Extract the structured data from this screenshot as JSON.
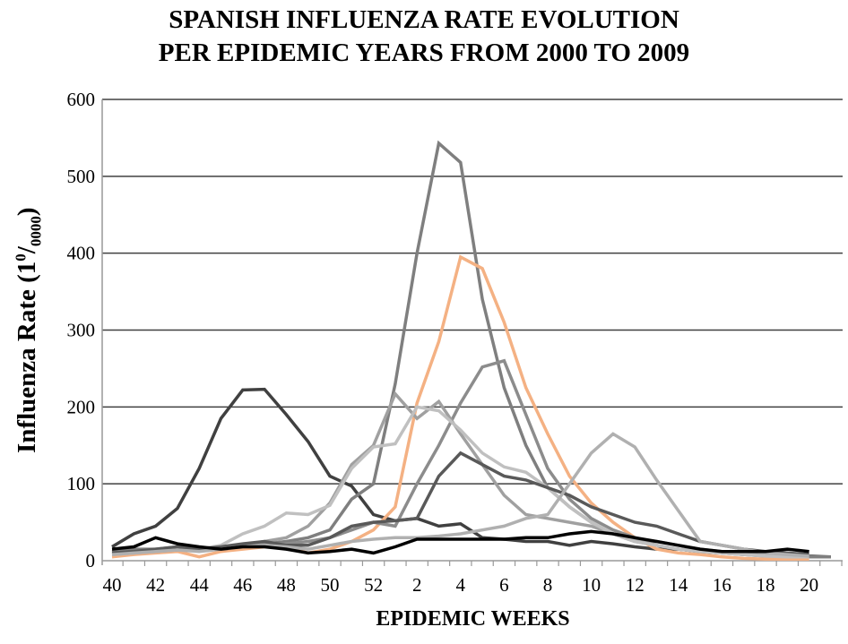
{
  "chart_data": {
    "type": "line",
    "title": [
      "SPANISH INFLUENZA RATE EVOLUTION",
      "PER EPIDEMIC YEARS FROM 2000 TO 2009"
    ],
    "xlabel": "EPIDEMIC WEEKS",
    "ylabel": {
      "main": "Influenza Rate  (1",
      "sup": "0",
      "slash": "/",
      "sub": "0000",
      "close": ")"
    },
    "ylim": [
      0,
      600
    ],
    "yticks": [
      0,
      100,
      200,
      300,
      400,
      500,
      600
    ],
    "grid": true,
    "legend": "none",
    "categories": [
      40,
      41,
      42,
      43,
      44,
      45,
      46,
      47,
      48,
      49,
      50,
      51,
      52,
      1,
      2,
      3,
      4,
      5,
      6,
      7,
      8,
      9,
      10,
      11,
      12,
      13,
      14,
      15,
      16,
      17,
      18,
      19,
      20,
      21
    ],
    "xtick_labels": [
      "40",
      "42",
      "44",
      "46",
      "48",
      "50",
      "52",
      "2",
      "4",
      "6",
      "8",
      "10",
      "12",
      "14",
      "16",
      "18",
      "20"
    ],
    "series": [
      {
        "color": "#404040",
        "values": [
          18,
          35,
          45,
          68,
          120,
          185,
          222,
          223,
          190,
          155,
          110,
          97,
          60,
          52,
          55,
          45,
          48,
          30,
          28,
          25,
          25,
          20,
          25,
          22,
          18,
          15,
          15,
          12,
          10,
          10,
          10,
          8,
          6,
          5
        ]
      },
      {
        "color": "#7f7f7f",
        "values": [
          12,
          15,
          15,
          18,
          15,
          18,
          20,
          22,
          25,
          30,
          40,
          80,
          100,
          230,
          400,
          543,
          518,
          340,
          225,
          150,
          95,
          70,
          50,
          35,
          25,
          20,
          15,
          12,
          10,
          8,
          6,
          5,
          5,
          5
        ]
      },
      {
        "color": "#f4b183",
        "values": [
          5,
          8,
          10,
          12,
          5,
          12,
          15,
          18,
          18,
          10,
          15,
          25,
          40,
          70,
          205,
          285,
          395,
          380,
          310,
          225,
          165,
          110,
          75,
          50,
          30,
          15,
          10,
          8,
          5,
          3,
          2,
          2,
          2,
          null
        ]
      },
      {
        "color": "#8c8c8c",
        "values": [
          10,
          12,
          12,
          15,
          15,
          18,
          20,
          20,
          22,
          25,
          30,
          40,
          50,
          45,
          100,
          150,
          205,
          252,
          260,
          190,
          120,
          80,
          55,
          40,
          30,
          20,
          15,
          12,
          10,
          8,
          8,
          6,
          5,
          null
        ]
      },
      {
        "color": "#a0a0a0",
        "values": [
          8,
          10,
          12,
          14,
          14,
          16,
          20,
          25,
          30,
          45,
          75,
          125,
          150,
          217,
          185,
          207,
          165,
          125,
          85,
          60,
          55,
          50,
          45,
          35,
          28,
          25,
          20,
          15,
          12,
          10,
          8,
          6,
          5,
          null
        ]
      },
      {
        "color": "#c0c0c0",
        "values": [
          8,
          10,
          12,
          15,
          15,
          20,
          35,
          45,
          62,
          60,
          72,
          120,
          148,
          152,
          200,
          195,
          170,
          140,
          122,
          115,
          95,
          70,
          50,
          35,
          25,
          20,
          15,
          12,
          10,
          8,
          6,
          5,
          5,
          null
        ]
      },
      {
        "color": "#595959",
        "values": [
          10,
          12,
          15,
          18,
          15,
          18,
          22,
          25,
          20,
          20,
          30,
          45,
          50,
          52,
          55,
          110,
          140,
          125,
          110,
          105,
          95,
          85,
          70,
          60,
          50,
          45,
          35,
          25,
          20,
          15,
          12,
          10,
          8,
          null
        ]
      },
      {
        "color": "#b0b0b0",
        "values": [
          8,
          10,
          12,
          14,
          12,
          15,
          18,
          20,
          18,
          15,
          20,
          25,
          28,
          30,
          30,
          32,
          35,
          40,
          45,
          55,
          60,
          100,
          140,
          165,
          148,
          105,
          65,
          25,
          20,
          15,
          10,
          8,
          6,
          null
        ]
      },
      {
        "color": "#000000",
        "values": [
          15,
          18,
          30,
          22,
          18,
          15,
          18,
          18,
          15,
          10,
          12,
          15,
          10,
          18,
          28,
          28,
          28,
          28,
          28,
          30,
          30,
          35,
          38,
          35,
          30,
          25,
          20,
          15,
          12,
          12,
          12,
          15,
          12,
          null
        ]
      }
    ]
  }
}
